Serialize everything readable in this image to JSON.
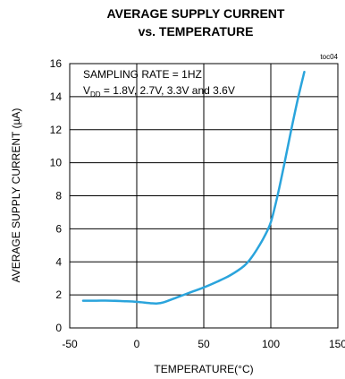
{
  "chart_data": {
    "type": "line",
    "title_line1": "AVERAGE SUPPLY CURRENT",
    "title_line2": "vs. TEMPERATURE",
    "tag": "toc04",
    "xlabel": "TEMPERATURE(°C)",
    "ylabel": "AVERAGE SUPPLY CURRENT (µA)",
    "xlim": [
      -50,
      150
    ],
    "ylim": [
      0,
      16
    ],
    "x_ticks": [
      -50,
      0,
      50,
      100,
      150
    ],
    "y_ticks": [
      0,
      2,
      4,
      6,
      8,
      10,
      12,
      14,
      16
    ],
    "grid": true,
    "annotations": {
      "line1": "SAMPLING RATE = 1HZ",
      "line2_prefix": "V",
      "line2_sub": "DD",
      "line2_rest": " = 1.8V, 2.7V, 3.3V and 3.6V"
    },
    "series": [
      {
        "color": "#2aa4dc",
        "x": [
          -40,
          -30,
          -20,
          -10,
          0,
          10,
          15,
          20,
          30,
          40,
          50,
          60,
          70,
          80,
          85,
          90,
          95,
          100,
          105,
          110,
          115,
          120,
          125
        ],
        "y": [
          1.65,
          1.65,
          1.65,
          1.62,
          1.58,
          1.5,
          1.48,
          1.55,
          1.85,
          2.15,
          2.45,
          2.8,
          3.2,
          3.75,
          4.2,
          4.8,
          5.5,
          6.4,
          8.0,
          9.9,
          11.9,
          13.8,
          15.5
        ]
      }
    ]
  }
}
